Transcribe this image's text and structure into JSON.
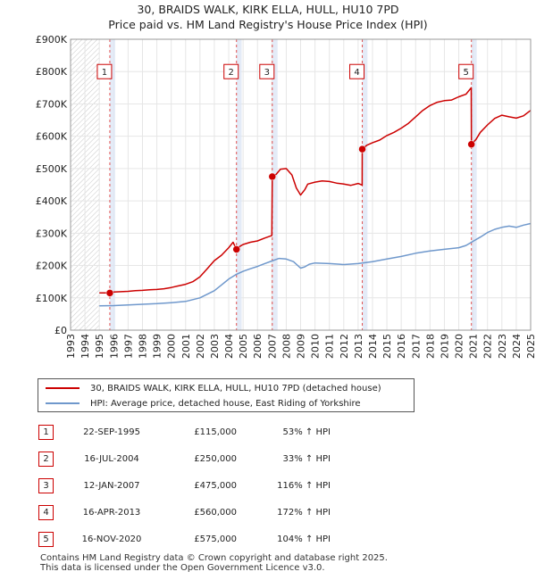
{
  "title_line1": "30, BRAIDS WALK, KIRK ELLA, HULL, HU10 7PD",
  "title_line2": "Price paid vs. HM Land Registry's House Price Index (HPI)",
  "chart_data": {
    "type": "line",
    "xlim": [
      1993,
      2025
    ],
    "ylim": [
      0,
      900000
    ],
    "x_ticks": [
      1993,
      1994,
      1995,
      1996,
      1997,
      1998,
      1999,
      2000,
      2001,
      2002,
      2003,
      2004,
      2005,
      2006,
      2007,
      2008,
      2009,
      2010,
      2011,
      2012,
      2013,
      2014,
      2015,
      2016,
      2017,
      2018,
      2019,
      2020,
      2021,
      2022,
      2023,
      2024,
      2025
    ],
    "y_ticks": [
      {
        "value": 0,
        "label": "£0"
      },
      {
        "value": 100000,
        "label": "£100K"
      },
      {
        "value": 200000,
        "label": "£200K"
      },
      {
        "value": 300000,
        "label": "£300K"
      },
      {
        "value": 400000,
        "label": "£400K"
      },
      {
        "value": 500000,
        "label": "£500K"
      },
      {
        "value": 600000,
        "label": "£600K"
      },
      {
        "value": 700000,
        "label": "£700K"
      },
      {
        "value": 800000,
        "label": "£800K"
      },
      {
        "value": 900000,
        "label": "£900K"
      }
    ],
    "hatch_before": 1995.0,
    "hatch_after": 2025.0,
    "sale_bands": [
      [
        1995.73,
        1996.1
      ],
      [
        2004.54,
        2004.9
      ],
      [
        2007.03,
        2007.4
      ],
      [
        2013.29,
        2013.65
      ],
      [
        2020.88,
        2021.25
      ]
    ],
    "series": [
      {
        "name": "30, BRAIDS WALK, KIRK ELLA, HULL, HU10 7PD (detached house)",
        "color": "#cc0000",
        "x": [
          1995.0,
          1995.73,
          1996.0,
          1996.5,
          1997.0,
          1997.5,
          1998.0,
          1998.5,
          1999.0,
          1999.5,
          2000.0,
          2000.5,
          2001.0,
          2001.5,
          2002.0,
          2002.5,
          2003.0,
          2003.5,
          2004.0,
          2004.3,
          2004.54,
          2004.8,
          2005.0,
          2005.5,
          2006.0,
          2006.5,
          2007.0,
          2007.03,
          2007.3,
          2007.6,
          2008.0,
          2008.4,
          2008.7,
          2009.0,
          2009.3,
          2009.5,
          2010.0,
          2010.5,
          2011.0,
          2011.5,
          2012.0,
          2012.5,
          2013.0,
          2013.28,
          2013.29,
          2013.6,
          2014.0,
          2014.5,
          2015.0,
          2015.5,
          2016.0,
          2016.5,
          2017.0,
          2017.5,
          2018.0,
          2018.5,
          2019.0,
          2019.5,
          2020.0,
          2020.5,
          2020.87,
          2020.88,
          2021.2,
          2021.5,
          2022.0,
          2022.5,
          2023.0,
          2023.5,
          2024.0,
          2024.5,
          2025.0
        ],
        "values": [
          115000,
          115000,
          118000,
          119000,
          120000,
          122000,
          123000,
          125000,
          126000,
          128000,
          132000,
          137000,
          142000,
          150000,
          165000,
          190000,
          215000,
          232000,
          255000,
          272000,
          250000,
          260000,
          265000,
          272000,
          276000,
          285000,
          293000,
          475000,
          482000,
          498000,
          500000,
          480000,
          440000,
          418000,
          435000,
          452000,
          458000,
          462000,
          460000,
          455000,
          452000,
          448000,
          454000,
          449000,
          560000,
          572000,
          580000,
          588000,
          602000,
          612000,
          625000,
          640000,
          660000,
          680000,
          695000,
          705000,
          710000,
          712000,
          722000,
          730000,
          750000,
          575000,
          590000,
          612000,
          635000,
          655000,
          665000,
          660000,
          656000,
          663000,
          680000
        ]
      },
      {
        "name": "HPI: Average price, detached house, East Riding of Yorkshire",
        "color": "#6f98cc",
        "x": [
          1995.0,
          1996.0,
          1997.0,
          1998.0,
          1999.0,
          2000.0,
          2001.0,
          2002.0,
          2003.0,
          2003.5,
          2004.0,
          2004.5,
          2005.0,
          2005.5,
          2006.0,
          2006.5,
          2007.0,
          2007.5,
          2008.0,
          2008.5,
          2009.0,
          2009.3,
          2009.6,
          2010.0,
          2011.0,
          2012.0,
          2013.0,
          2014.0,
          2015.0,
          2016.0,
          2017.0,
          2018.0,
          2019.0,
          2020.0,
          2020.5,
          2021.0,
          2021.5,
          2022.0,
          2022.5,
          2023.0,
          2023.5,
          2024.0,
          2024.5,
          2025.0
        ],
        "values": [
          75000,
          76000,
          78000,
          80000,
          82000,
          85000,
          89000,
          100000,
          122000,
          140000,
          158000,
          172000,
          182000,
          190000,
          197000,
          206000,
          214000,
          222000,
          220000,
          212000,
          192000,
          196000,
          204000,
          208000,
          206000,
          203000,
          206000,
          212000,
          220000,
          228000,
          238000,
          245000,
          250000,
          255000,
          262000,
          275000,
          288000,
          302000,
          312000,
          318000,
          322000,
          318000,
          325000,
          330000
        ]
      }
    ],
    "sales": [
      {
        "num": "1",
        "x": 1995.73,
        "price": 115000
      },
      {
        "num": "2",
        "x": 2004.54,
        "price": 250000
      },
      {
        "num": "3",
        "x": 2007.03,
        "price": 475000
      },
      {
        "num": "4",
        "x": 2013.29,
        "price": 560000
      },
      {
        "num": "5",
        "x": 2020.88,
        "price": 575000
      }
    ],
    "sale_label_value": 800000
  },
  "legend": {
    "property": "30, BRAIDS WALK, KIRK ELLA, HULL, HU10 7PD (detached house)",
    "hpi": "HPI: Average price, detached house, East Riding of Yorkshire",
    "property_color": "#cc0000",
    "hpi_color": "#6f98cc"
  },
  "sales_table": [
    {
      "num": "1",
      "date": "22-SEP-1995",
      "price": "£115,000",
      "hpi": "53% ↑ HPI"
    },
    {
      "num": "2",
      "date": "16-JUL-2004",
      "price": "£250,000",
      "hpi": "33% ↑ HPI"
    },
    {
      "num": "3",
      "date": "12-JAN-2007",
      "price": "£475,000",
      "hpi": "116% ↑ HPI"
    },
    {
      "num": "4",
      "date": "16-APR-2013",
      "price": "£560,000",
      "hpi": "172% ↑ HPI"
    },
    {
      "num": "5",
      "date": "16-NOV-2020",
      "price": "£575,000",
      "hpi": "104% ↑ HPI"
    }
  ],
  "footer_line1": "Contains HM Land Registry data © Crown copyright and database right 2025.",
  "footer_line2": "This data is licensed under the Open Government Licence v3.0."
}
